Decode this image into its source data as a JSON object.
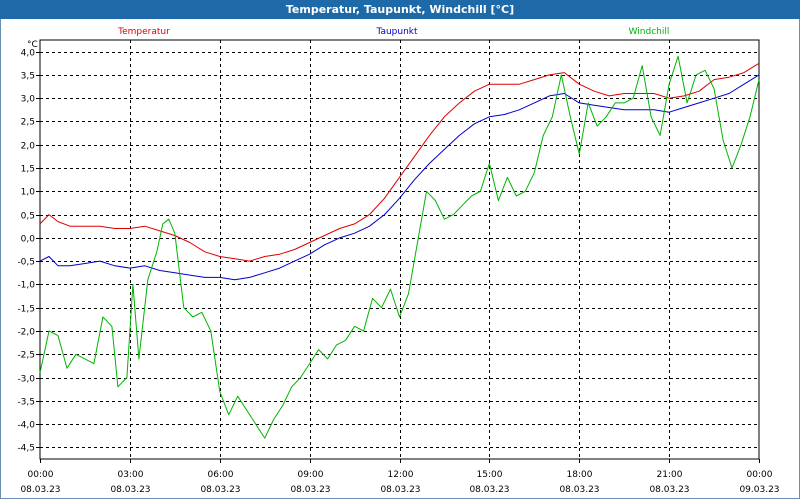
{
  "window": {
    "title": "Temperatur, Taupunkt, Windchill [°C]"
  },
  "chart_data": {
    "type": "line",
    "title": "Temperatur, Taupunkt, Windchill [°C]",
    "ylabel": "°C",
    "ylim": [
      -4.75,
      4.25
    ],
    "xlim": [
      0,
      24
    ],
    "yticks": [
      4.0,
      3.5,
      3.0,
      2.5,
      2.0,
      1.5,
      1.0,
      0.5,
      0.0,
      -0.5,
      -1.0,
      -1.5,
      -2.0,
      -2.5,
      -3.0,
      -3.5,
      -4.0,
      -4.5
    ],
    "ytick_labels": [
      "4,0",
      "3,5",
      "3,0",
      "2,5",
      "2,0",
      "1,5",
      "1,0",
      "0,5",
      "0,0",
      "-0,5",
      "-1,0",
      "-1,5",
      "-2,0",
      "-2,5",
      "-3,0",
      "-3,5",
      "-4,0",
      "-4,5"
    ],
    "xticks": [
      {
        "time": "00:00",
        "date": "08.03.23"
      },
      {
        "time": "03:00",
        "date": "08.03.23"
      },
      {
        "time": "06:00",
        "date": "08.03.23"
      },
      {
        "time": "09:00",
        "date": "08.03.23"
      },
      {
        "time": "12:00",
        "date": "08.03.23"
      },
      {
        "time": "15:00",
        "date": "08.03.23"
      },
      {
        "time": "18:00",
        "date": "08.03.23"
      },
      {
        "time": "21:00",
        "date": "08.03.23"
      },
      {
        "time": "00:00",
        "date": "09.03.23"
      }
    ],
    "grid": true,
    "series": [
      {
        "name": "Temperatur",
        "color": "#e00000",
        "x": [
          0,
          0.3,
          0.6,
          1,
          1.5,
          2,
          2.5,
          3,
          3.5,
          4,
          4.5,
          5,
          5.5,
          6,
          6.5,
          7,
          7.5,
          8,
          8.5,
          9,
          9.5,
          10,
          10.5,
          11,
          11.5,
          12,
          12.5,
          13,
          13.5,
          14,
          14.5,
          15,
          15.5,
          16,
          16.5,
          17,
          17.5,
          18,
          18.5,
          19,
          19.5,
          20,
          20.5,
          21,
          21.5,
          22,
          22.5,
          23,
          23.5,
          24
        ],
        "values": [
          0.3,
          0.5,
          0.35,
          0.25,
          0.25,
          0.25,
          0.2,
          0.2,
          0.25,
          0.15,
          0.05,
          -0.1,
          -0.3,
          -0.4,
          -0.45,
          -0.5,
          -0.4,
          -0.35,
          -0.25,
          -0.1,
          0.05,
          0.2,
          0.3,
          0.5,
          0.85,
          1.3,
          1.75,
          2.2,
          2.6,
          2.9,
          3.15,
          3.3,
          3.3,
          3.3,
          3.4,
          3.5,
          3.55,
          3.3,
          3.15,
          3.05,
          3.1,
          3.1,
          3.1,
          3.0,
          3.05,
          3.15,
          3.4,
          3.45,
          3.55,
          3.75
        ]
      },
      {
        "name": "Taupunkt",
        "color": "#0000c8",
        "x": [
          0,
          0.3,
          0.6,
          1,
          1.5,
          2,
          2.5,
          3,
          3.5,
          4,
          4.5,
          5,
          5.5,
          6,
          6.5,
          7,
          7.5,
          8,
          8.5,
          9,
          9.5,
          10,
          10.5,
          11,
          11.5,
          12,
          12.5,
          13,
          13.5,
          14,
          14.5,
          15,
          15.5,
          16,
          16.5,
          17,
          17.5,
          18,
          18.5,
          19,
          19.5,
          20,
          20.5,
          21,
          21.5,
          22,
          22.5,
          23,
          23.5,
          24
        ],
        "values": [
          -0.5,
          -0.4,
          -0.6,
          -0.6,
          -0.55,
          -0.5,
          -0.6,
          -0.65,
          -0.6,
          -0.7,
          -0.75,
          -0.8,
          -0.85,
          -0.85,
          -0.9,
          -0.85,
          -0.75,
          -0.65,
          -0.5,
          -0.35,
          -0.15,
          0.0,
          0.1,
          0.25,
          0.5,
          0.85,
          1.25,
          1.6,
          1.9,
          2.2,
          2.45,
          2.6,
          2.65,
          2.75,
          2.9,
          3.05,
          3.1,
          2.9,
          2.85,
          2.8,
          2.75,
          2.75,
          2.75,
          2.7,
          2.8,
          2.9,
          3.0,
          3.1,
          3.3,
          3.5
        ]
      },
      {
        "name": "Windchill",
        "color": "#00b400",
        "x": [
          0,
          0.3,
          0.6,
          0.9,
          1.2,
          1.5,
          1.8,
          2.1,
          2.4,
          2.6,
          2.9,
          3.1,
          3.3,
          3.6,
          3.9,
          4.1,
          4.3,
          4.5,
          4.8,
          5.1,
          5.4,
          5.7,
          6.0,
          6.3,
          6.6,
          6.9,
          7.2,
          7.5,
          7.8,
          8.1,
          8.4,
          8.7,
          9.0,
          9.3,
          9.6,
          9.9,
          10.2,
          10.5,
          10.8,
          11.1,
          11.4,
          11.7,
          12.0,
          12.3,
          12.6,
          12.9,
          13.2,
          13.5,
          13.8,
          14.1,
          14.4,
          14.7,
          15.0,
          15.3,
          15.6,
          15.9,
          16.2,
          16.5,
          16.8,
          17.1,
          17.4,
          17.7,
          18.0,
          18.3,
          18.6,
          18.9,
          19.2,
          19.5,
          19.8,
          20.1,
          20.4,
          20.7,
          21.0,
          21.3,
          21.6,
          21.9,
          22.2,
          22.5,
          22.8,
          23.1,
          23.4,
          23.7,
          24.0
        ],
        "values": [
          -2.9,
          -2.0,
          -2.1,
          -2.8,
          -2.5,
          -2.6,
          -2.7,
          -1.7,
          -1.9,
          -3.2,
          -3.0,
          -1.0,
          -2.6,
          -0.9,
          -0.3,
          0.3,
          0.4,
          0.1,
          -1.5,
          -1.7,
          -1.6,
          -2.0,
          -3.3,
          -3.8,
          -3.4,
          -3.7,
          -4.0,
          -4.3,
          -3.9,
          -3.6,
          -3.2,
          -3.0,
          -2.7,
          -2.4,
          -2.6,
          -2.3,
          -2.2,
          -1.9,
          -2.0,
          -1.3,
          -1.5,
          -1.1,
          -1.7,
          -1.2,
          -0.1,
          1.0,
          0.8,
          0.4,
          0.5,
          0.7,
          0.9,
          1.0,
          1.6,
          0.8,
          1.3,
          0.9,
          1.0,
          1.4,
          2.2,
          2.6,
          3.5,
          2.6,
          1.8,
          2.9,
          2.4,
          2.6,
          2.9,
          2.9,
          3.0,
          3.7,
          2.6,
          2.2,
          3.3,
          3.9,
          2.9,
          3.5,
          3.6,
          3.2,
          2.1,
          1.5,
          2.0,
          2.6,
          3.4
        ]
      }
    ]
  }
}
